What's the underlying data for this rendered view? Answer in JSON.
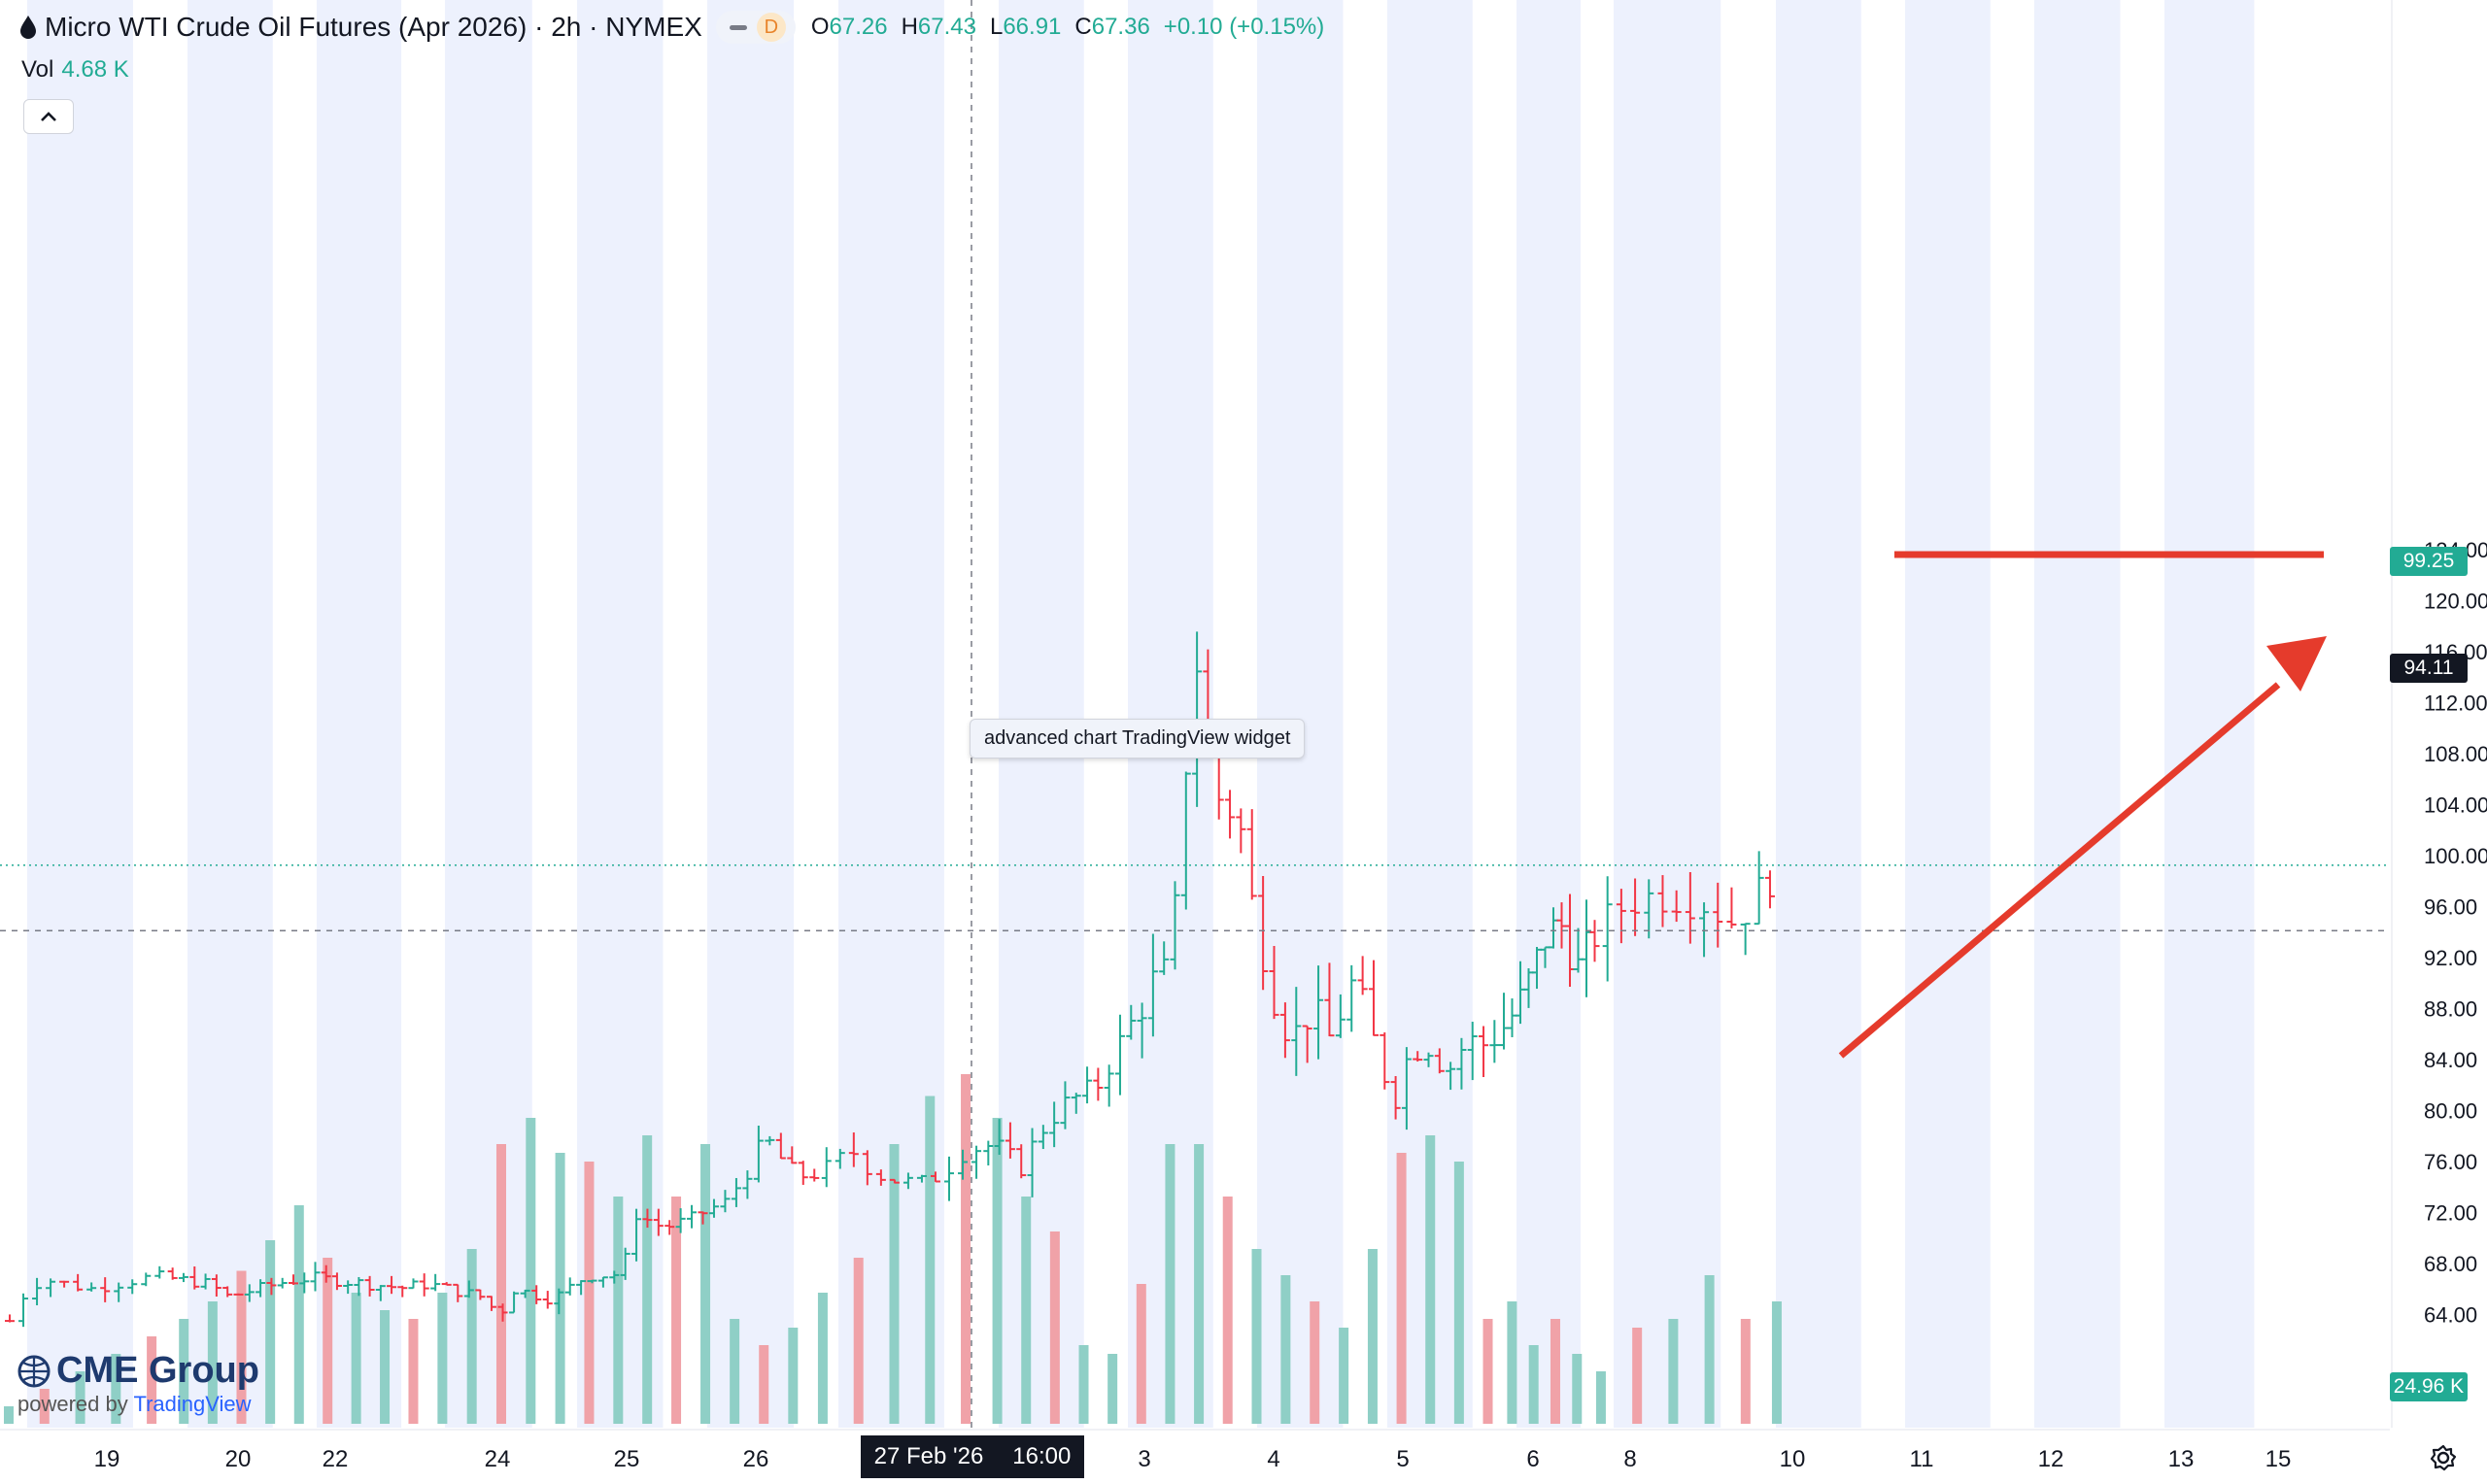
{
  "header": {
    "title": "Micro WTI Crude Oil Futures (Apr 2026) · 2h · NYMEX",
    "badge": "D",
    "ohlc": [
      {
        "k": "O",
        "v": "67.26"
      },
      {
        "k": "H",
        "v": "67.43"
      },
      {
        "k": "L",
        "v": "66.91"
      },
      {
        "k": "C",
        "v": "67.36"
      },
      {
        "k": "",
        "v": "+0.10 (+0.15%)"
      }
    ]
  },
  "volume_label": {
    "k": "Vol",
    "v": "4.68 K"
  },
  "tooltip": "advanced chart TradingView widget",
  "crosshair_date": {
    "date": "27 Feb '26",
    "time": "16:00"
  },
  "price_boxes": {
    "last": "99.25",
    "crosshair": "94.11",
    "volume": "24.96 K"
  },
  "branding": {
    "name": "CME Group",
    "powered": "powered by",
    "tv": "TradingView"
  },
  "colors": {
    "up": "#22ab94",
    "down": "#f23645",
    "up_vol": "#8fcfc6",
    "down_vol": "#f0a2a8",
    "band": "#edf1fd",
    "annotation": "#e53b2c",
    "last_price": "#22ab94"
  },
  "icons": [
    "droplet-icon",
    "minus-icon",
    "chevron-up-icon",
    "gear-icon"
  ],
  "chart_data": {
    "type": "ohlc",
    "title": "Micro WTI Crude Oil Futures (Apr 2026) · 2h · NYMEX",
    "ylim": [
      60,
      125
    ],
    "y_ticks": [
      "64.00",
      "68.00",
      "72.00",
      "76.00",
      "80.00",
      "84.00",
      "88.00",
      "92.00",
      "96.00",
      "100.00",
      "104.00",
      "108.00",
      "112.00",
      "116.00",
      "120.00",
      "124.00"
    ],
    "x_ticks": [
      "19",
      "20",
      "22",
      "24",
      "25",
      "26",
      "3",
      "4",
      "5",
      "6",
      "8",
      "10",
      "11",
      "12",
      "13",
      "15"
    ],
    "price_path": [
      [
        0,
        63.5
      ],
      [
        0.06,
        65.2
      ],
      [
        0.2,
        66.8
      ],
      [
        0.5,
        66.0
      ],
      [
        0.9,
        67.0
      ],
      [
        1.3,
        66.4
      ],
      [
        1.45,
        65.4
      ],
      [
        1.9,
        66.6
      ],
      [
        2.1,
        66.9
      ],
      [
        2.8,
        66.1
      ],
      [
        3.0,
        66.4
      ],
      [
        3.4,
        65.4
      ],
      [
        3.55,
        64.0
      ],
      [
        3.65,
        66.0
      ],
      [
        3.95,
        65.2
      ],
      [
        4.2,
        67.0
      ],
      [
        4.5,
        67.2
      ],
      [
        4.52,
        72.0
      ],
      [
        4.6,
        71.8
      ],
      [
        4.8,
        70.8
      ],
      [
        5.0,
        71.5
      ],
      [
        5.3,
        73.0
      ],
      [
        5.5,
        76.5
      ],
      [
        5.6,
        77.5
      ],
      [
        5.8,
        74.8
      ],
      [
        6.0,
        75.0
      ],
      [
        6.2,
        76.8
      ],
      [
        6.4,
        74.5
      ],
      [
        6.7,
        74.5
      ],
      [
        6.9,
        77.0
      ],
      [
        7.1,
        77.3
      ],
      [
        7.3,
        75.5
      ],
      [
        7.5,
        79.0
      ],
      [
        7.65,
        80.5
      ],
      [
        7.9,
        82.0
      ],
      [
        8.1,
        85.5
      ],
      [
        8.35,
        90.5
      ],
      [
        8.45,
        90.8
      ],
      [
        8.55,
        100.5
      ],
      [
        8.62,
        114.0
      ],
      [
        8.7,
        115.5
      ],
      [
        8.78,
        105.0
      ],
      [
        8.9,
        104.0
      ],
      [
        9.0,
        102.5
      ],
      [
        9.1,
        96.0
      ],
      [
        9.25,
        89.5
      ],
      [
        9.4,
        85.5
      ],
      [
        9.55,
        88.0
      ],
      [
        9.7,
        85.5
      ],
      [
        9.85,
        90.0
      ],
      [
        9.95,
        88.0
      ],
      [
        10.1,
        83.0
      ],
      [
        10.2,
        81.0
      ],
      [
        10.3,
        84.5
      ],
      [
        10.45,
        85.0
      ],
      [
        10.6,
        83.0
      ],
      [
        10.75,
        85.5
      ],
      [
        10.85,
        85.0
      ],
      [
        11.1,
        87.0
      ],
      [
        11.25,
        89.0
      ],
      [
        11.5,
        94.0
      ],
      [
        11.65,
        94.5
      ],
      [
        11.8,
        91.0
      ],
      [
        12.0,
        94.0
      ],
      [
        12.2,
        96.5
      ],
      [
        12.45,
        97.0
      ],
      [
        12.65,
        96.5
      ],
      [
        12.85,
        94.8
      ],
      [
        13.0,
        97.0
      ],
      [
        13.15,
        99.25
      ]
    ],
    "volume_k": [
      4,
      8,
      12,
      16,
      20,
      24,
      28,
      35,
      42,
      50,
      38,
      30,
      26,
      24,
      30,
      40,
      64,
      70,
      62,
      60,
      52,
      66,
      52,
      64,
      24,
      18,
      22,
      30,
      38,
      64,
      75,
      80,
      70,
      52,
      44,
      18,
      16,
      32,
      64,
      64,
      52,
      40,
      34,
      28,
      22,
      40,
      62,
      66,
      60,
      24,
      28,
      18,
      24,
      16,
      12,
      22,
      24,
      34,
      24,
      28
    ]
  }
}
